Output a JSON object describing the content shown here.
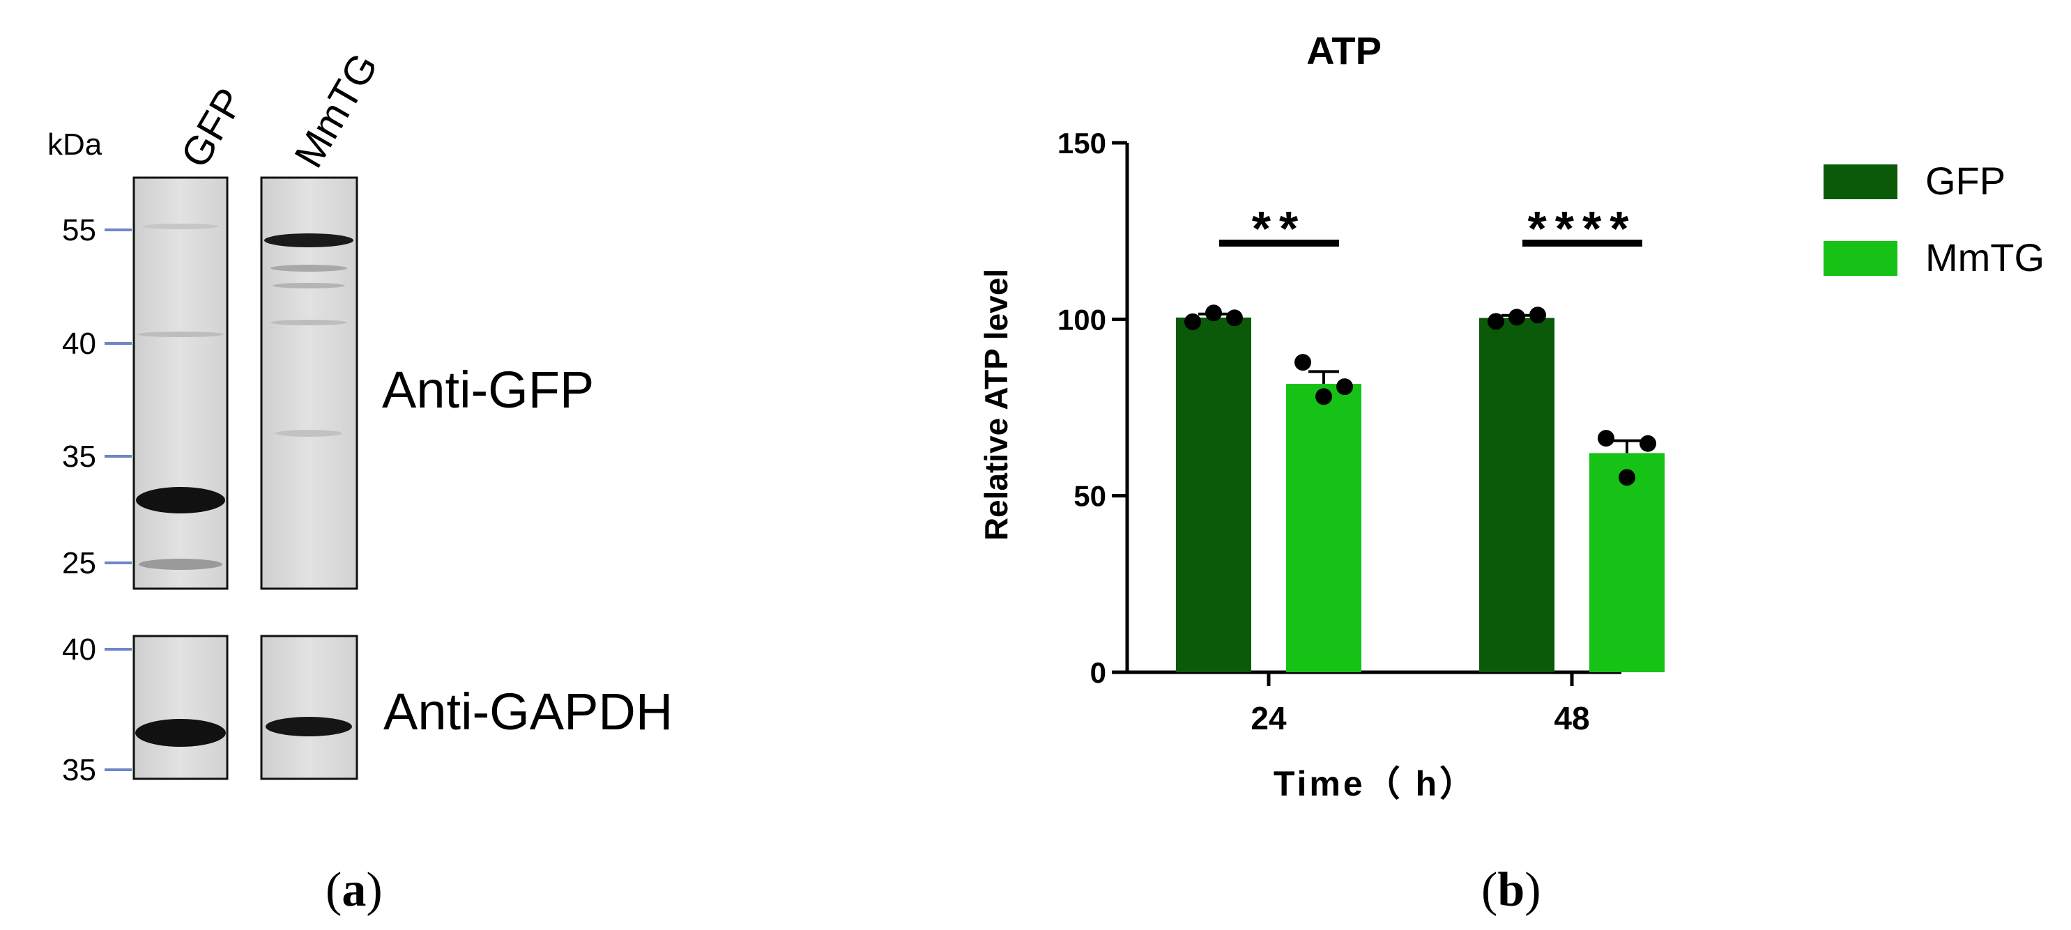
{
  "panel_a": {
    "kda_label": "kDa",
    "lane_labels": [
      "GFP",
      "MmTG"
    ],
    "blots": [
      {
        "label": "Anti-GFP",
        "markers": [
          "55",
          "40",
          "35",
          "25"
        ]
      },
      {
        "label": "Anti-GAPDH",
        "markers": [
          "40",
          "35"
        ]
      }
    ],
    "caption_letter": "a"
  },
  "panel_b": {
    "caption_letter": "b",
    "significance": [
      "**",
      "****"
    ]
  },
  "chart_data": {
    "type": "bar",
    "title": "ATP",
    "xlabel": "Time（ h）",
    "ylabel": "Relative ATP level",
    "categories": [
      "24",
      "48"
    ],
    "ylim": [
      0,
      150
    ],
    "yticks": [
      "0",
      "50",
      "100",
      "150"
    ],
    "legend_position": "right",
    "colors": {
      "GFP": "#0a5a0a",
      "MmTG": "#16c216"
    },
    "series": [
      {
        "name": "GFP",
        "values": [
          100.5,
          100.4
        ],
        "error": [
          1.0,
          0.7
        ],
        "points": [
          [
            99.3,
            101.8,
            100.4
          ],
          [
            99.4,
            100.6,
            101.2
          ]
        ]
      },
      {
        "name": "MmTG",
        "values": [
          81.7,
          62.1
        ],
        "error": [
          3.5,
          3.5
        ],
        "points": [
          [
            87.8,
            78.1,
            80.9
          ],
          [
            66.3,
            55.2,
            64.8
          ]
        ]
      }
    ]
  }
}
